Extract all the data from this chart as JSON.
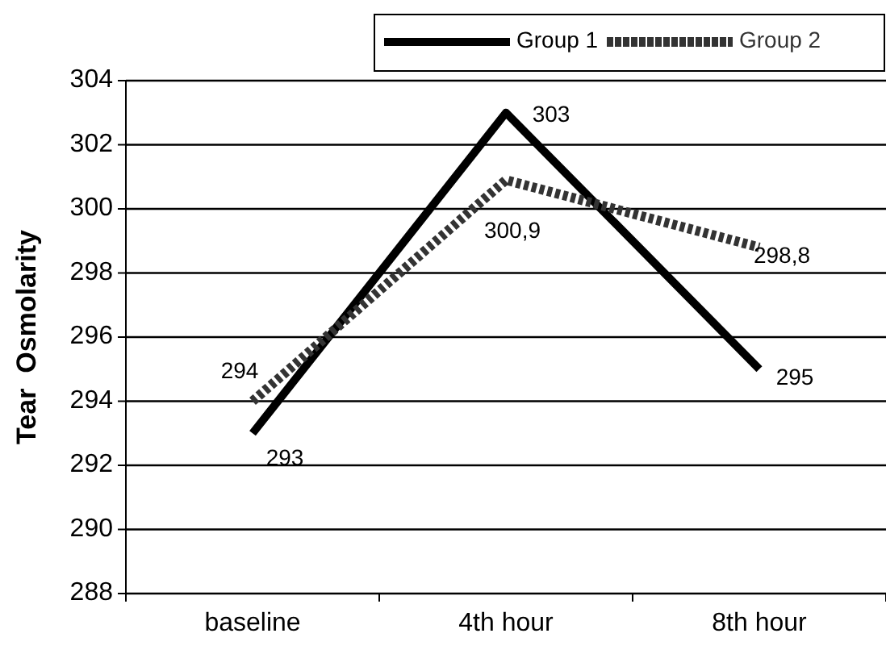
{
  "chart_data": {
    "type": "line",
    "ylabel": "Tear  Osmolarity",
    "categories": [
      "baseline",
      "4th hour",
      "8th hour"
    ],
    "series": [
      {
        "name": "Group 1",
        "color": "#000000",
        "values": [
          293,
          303,
          295
        ],
        "line_style": "solid",
        "value_labels": [
          "293",
          "303",
          "295"
        ]
      },
      {
        "name": "Group 2",
        "color": "#333333",
        "values": [
          294,
          300.9,
          298.8
        ],
        "line_style": "dotted",
        "value_labels": [
          "294",
          "300,9",
          "298,8"
        ]
      }
    ],
    "ylim": [
      288,
      304
    ],
    "yticks": [
      288,
      290,
      292,
      294,
      296,
      298,
      300,
      302,
      304
    ],
    "grid": "y",
    "legend": "top right",
    "marker": "none"
  }
}
